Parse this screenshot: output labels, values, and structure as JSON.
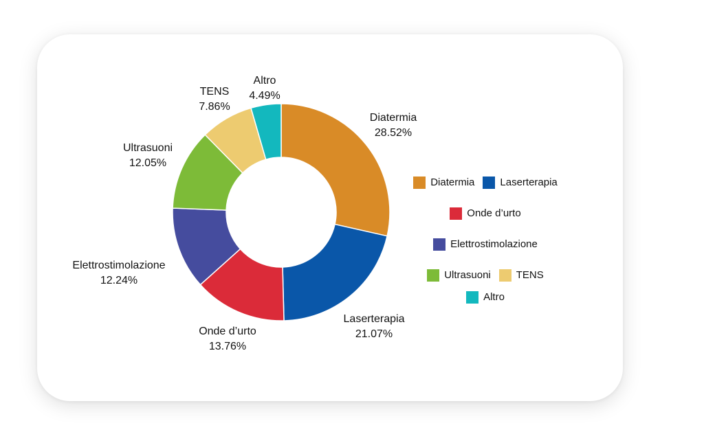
{
  "chart_data": {
    "type": "pie",
    "donut": true,
    "title": "",
    "legend_position": "right",
    "slices": [
      {
        "label": "Diatermia",
        "value": 28.52,
        "value_label": "28.52%",
        "color": "#D98B27"
      },
      {
        "label": "Laserterapia",
        "value": 21.07,
        "value_label": "21.07%",
        "color": "#0A57A9"
      },
      {
        "label": "Onde d’urto",
        "value": 13.76,
        "value_label": "13.76%",
        "color": "#DB2B39"
      },
      {
        "label": "Elettrostimolazione",
        "value": 12.24,
        "value_label": "12.24%",
        "color": "#454C9E"
      },
      {
        "label": "Ultrasuoni",
        "value": 12.05,
        "value_label": "12.05%",
        "color": "#7DBB38"
      },
      {
        "label": "TENS",
        "value": 7.86,
        "value_label": "7.86%",
        "color": "#EDCB70"
      },
      {
        "label": "Altro",
        "value": 4.49,
        "value_label": "4.49%",
        "color": "#13B8BE"
      }
    ]
  }
}
